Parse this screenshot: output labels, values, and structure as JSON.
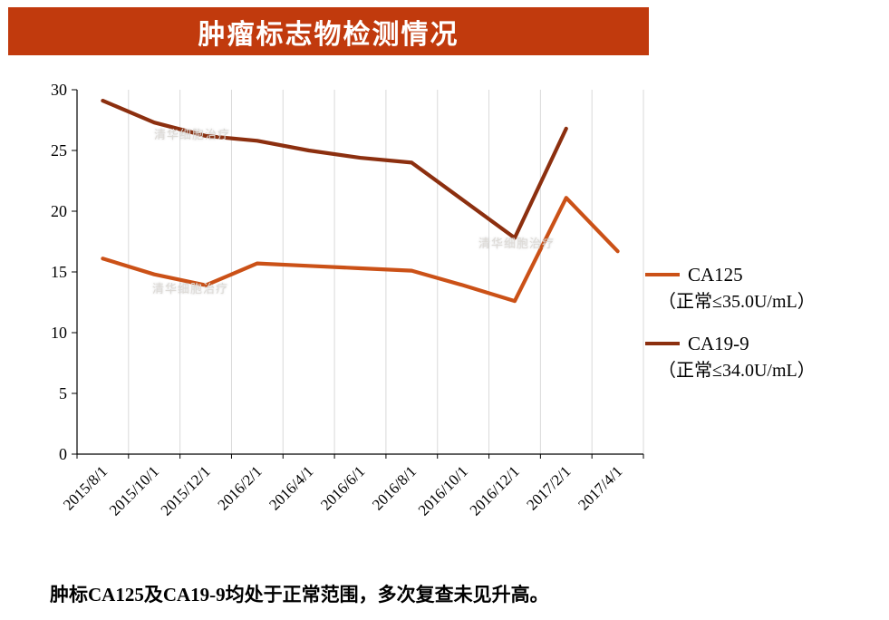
{
  "header": {
    "title": "肿瘤标志物检测情况",
    "bg_color": "#c13a0d",
    "text_color": "#ffffff"
  },
  "chart_data": {
    "type": "line",
    "title": "肿瘤标志物检测情况",
    "categories": [
      "2015/8/1",
      "2015/10/1",
      "2015/12/1",
      "2016/2/1",
      "2016/4/1",
      "2016/6/1",
      "2016/8/1",
      "2016/10/1",
      "2016/12/1",
      "2017/2/1",
      "2017/4/1"
    ],
    "series": [
      {
        "name": "CA125",
        "note": "（正常≤35.0U/mL）",
        "color": "#cb5117",
        "values": [
          16.1,
          14.8,
          13.9,
          15.7,
          15.5,
          15.3,
          15.1,
          13.9,
          12.6,
          21.1,
          16.7
        ]
      },
      {
        "name": "CA19-9",
        "note": "（正常≤34.0U/mL）",
        "color": "#8c2f0f",
        "values": [
          29.1,
          27.3,
          26.2,
          25.8,
          25.0,
          24.4,
          24.0,
          20.9,
          17.8,
          26.8,
          null
        ]
      }
    ],
    "ylim": [
      0,
      30
    ],
    "ytick_step": 5,
    "grid": "vertical",
    "grid_color": "#d9d9d9",
    "axis_color": "#000000",
    "legend_position": "right"
  },
  "watermark": {
    "text": "清华细胞治疗"
  },
  "caption": "肿标CA125及CA19-9均处于正常范围，多次复查未见升高。"
}
